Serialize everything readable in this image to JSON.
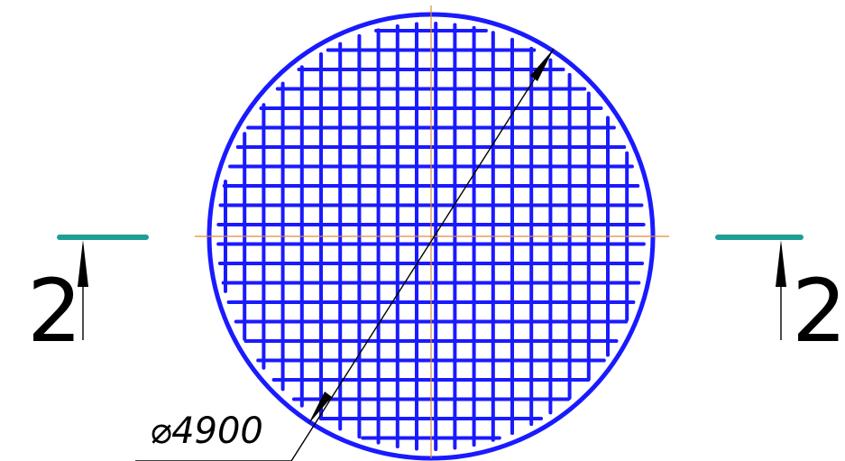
{
  "drawing": {
    "grid_color": "#1a1aff",
    "centerline_color": "#e08a3a",
    "section_line_color": "#1e9e97",
    "dimension_color": "#000000"
  },
  "dimension": {
    "label": "⌀4900"
  },
  "section_markers": {
    "left_label": "2",
    "right_label": "2"
  }
}
